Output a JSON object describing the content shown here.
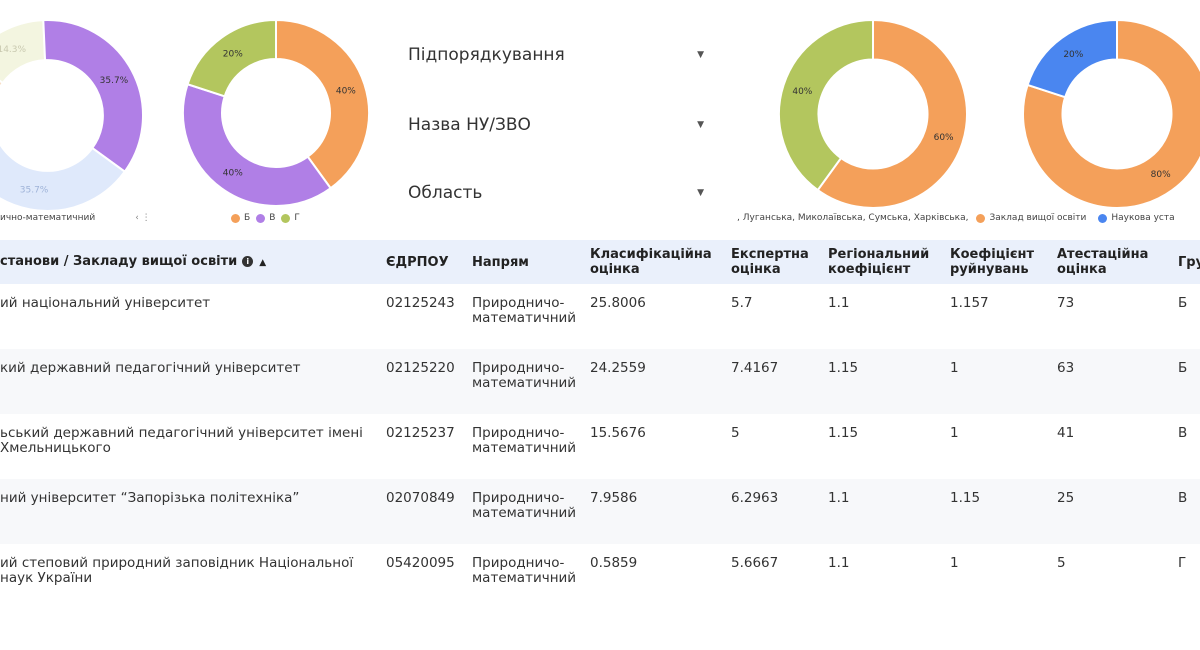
{
  "charts": {
    "pie1": {
      "labels": [
        "14.3%",
        "35.7%",
        "35.7%"
      ],
      "legend_text": "ично-математичний"
    },
    "pie2": {
      "labels": [
        "40%",
        "40%",
        "20%"
      ],
      "legend": [
        {
          "name": "Б",
          "color": "#f4a05a"
        },
        {
          "name": "В",
          "color": "#b07fe6"
        },
        {
          "name": "Г",
          "color": "#b3c65e"
        }
      ]
    },
    "pie3": {
      "labels": [
        "60%",
        "40%"
      ]
    },
    "pie4": {
      "labels": [
        "80%",
        "20%"
      ]
    },
    "legend_right": {
      "regions_text": ", Луганська, Миколаївська, Сумська, Харківська,",
      "items": [
        {
          "name": "Заклад вищої освіти",
          "color": "#f4a05a"
        },
        {
          "name": "Наукова уста",
          "color": "#4a86f0"
        }
      ]
    }
  },
  "chart_data": [
    {
      "type": "pie",
      "values": [
        14.3,
        35.7,
        35.7,
        14.3
      ],
      "colors": [
        "#f3f5e0",
        "#b07fe6",
        "#dfe9fb",
        "#f8dcc4"
      ]
    },
    {
      "type": "pie",
      "categories": [
        "Б",
        "В",
        "Г"
      ],
      "values": [
        40,
        40,
        20
      ],
      "colors": [
        "#f4a05a",
        "#b07fe6",
        "#b3c65e"
      ]
    },
    {
      "type": "pie",
      "values": [
        60,
        40
      ],
      "colors": [
        "#f4a05a",
        "#b3c65e"
      ]
    },
    {
      "type": "pie",
      "categories": [
        "Заклад вищої освіти",
        "Наукова уста"
      ],
      "values": [
        80,
        20
      ],
      "colors": [
        "#f4a05a",
        "#4a86f0"
      ]
    }
  ],
  "filters": [
    {
      "label": "Підпорядкування"
    },
    {
      "label": "Назва НУ/ЗВО"
    },
    {
      "label": "Область"
    }
  ],
  "table": {
    "headers": {
      "name": "станови / Закладу вищої освіти",
      "edrpou": "ЄДРПОУ",
      "direction": "Напрям",
      "class_score": "Класифікаційна оцінка",
      "expert_score": "Експертна оцінка",
      "region_coef": "Регіональний коефіцієнт",
      "destr_coef": "Коефіцієнт руйнувань",
      "attest_score": "Атестаційна оцінка",
      "group": "Гру"
    },
    "rows": [
      {
        "name": "ий національний університет",
        "edrpou": "02125243",
        "direction": "Природничо-математичний",
        "class_score": "25.8006",
        "expert_score": "5.7",
        "region_coef": "1.1",
        "destr_coef": "1.157",
        "attest_score": "73",
        "group": "Б"
      },
      {
        "name": "кий державний педагогічний університет",
        "edrpou": "02125220",
        "direction": "Природничо-математичний",
        "class_score": "24.2559",
        "expert_score": "7.4167",
        "region_coef": "1.15",
        "destr_coef": "1",
        "attest_score": "63",
        "group": "Б"
      },
      {
        "name": "ьський державний педагогічний університет імені Хмельницького",
        "edrpou": "02125237",
        "direction": "Природничо-математичний",
        "class_score": "15.5676",
        "expert_score": "5",
        "region_coef": "1.15",
        "destr_coef": "1",
        "attest_score": "41",
        "group": "В"
      },
      {
        "name": "ний університет “Запорізька політехніка”",
        "edrpou": "02070849",
        "direction": "Природничо-математичний",
        "class_score": "7.9586",
        "expert_score": "6.2963",
        "region_coef": "1.1",
        "destr_coef": "1.15",
        "attest_score": "25",
        "group": "В"
      },
      {
        "name": "ий степовий природний заповідник Національної наук України",
        "edrpou": "05420095",
        "direction": "Природничо-математичний",
        "class_score": "0.5859",
        "expert_score": "5.6667",
        "region_coef": "1.1",
        "destr_coef": "1",
        "attest_score": "5",
        "group": "Г"
      }
    ]
  }
}
